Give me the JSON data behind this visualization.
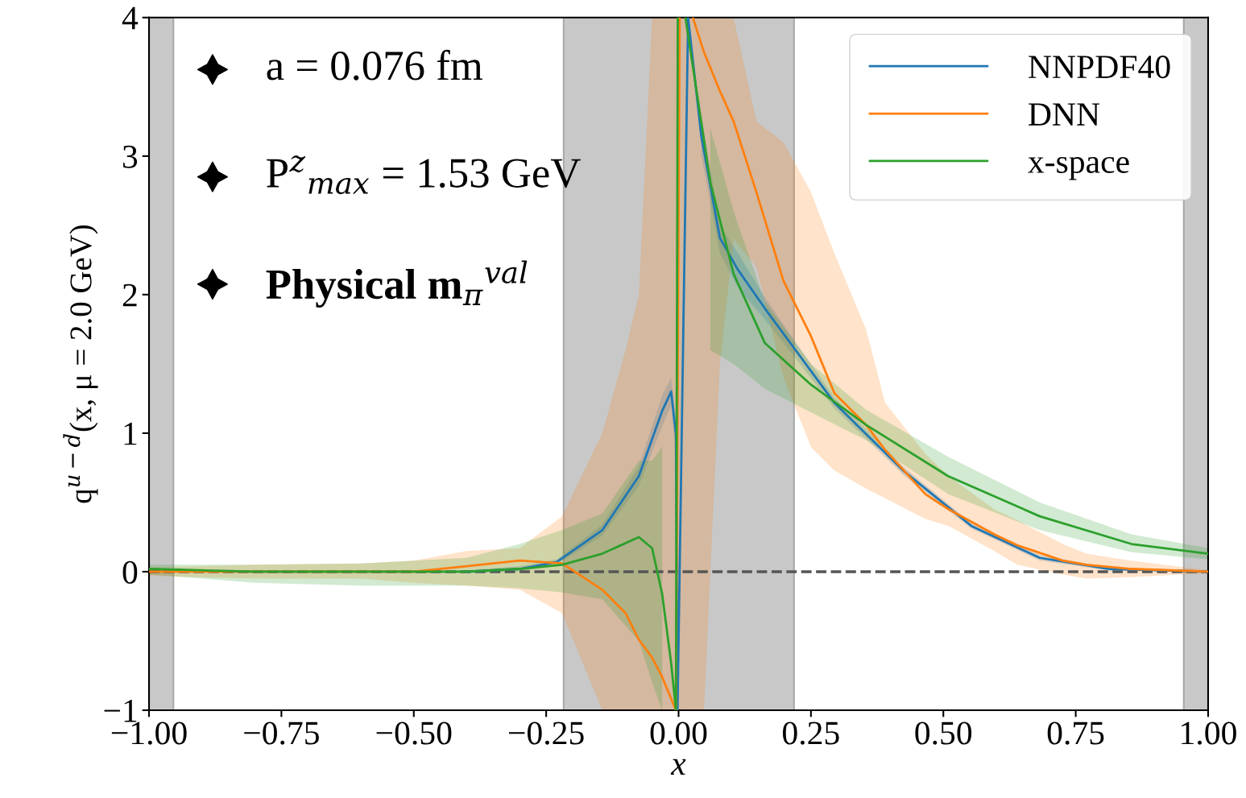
{
  "chart_data": {
    "type": "line",
    "xlabel": "x",
    "ylabel": "q$^{u−d}$(x, μ = 2.0 GeV)",
    "xlim": [
      -1,
      1
    ],
    "ylim": [
      -1,
      4
    ],
    "xticks": [
      {
        "value": -1,
        "label": "−1.00"
      },
      {
        "value": -0.75,
        "label": "−0.75"
      },
      {
        "value": -0.5,
        "label": "−0.50"
      },
      {
        "value": -0.25,
        "label": "−0.25"
      },
      {
        "value": 0,
        "label": "0.00"
      },
      {
        "value": 0.25,
        "label": "0.25"
      },
      {
        "value": 0.5,
        "label": "0.50"
      },
      {
        "value": 0.75,
        "label": "0.75"
      },
      {
        "value": 1,
        "label": "1.00"
      }
    ],
    "yticks": [
      {
        "value": -1,
        "label": "−1"
      },
      0,
      1,
      2,
      3,
      4
    ],
    "grid": false,
    "legend": "top right",
    "annotations": [
      "a = 0.076 fm",
      "P$^{z}$$_{max}$ = 1.53 GeV",
      "Physical m$_{π}$$^{val}$"
    ],
    "ref_lines": [
      {
        "axis": "y",
        "value": 0,
        "color": "#555555",
        "line_style": "dashed"
      }
    ],
    "bands": [
      {
        "axis": "x",
        "from": -1,
        "to": -0.954,
        "color": "#c8c8c8"
      },
      {
        "axis": "x",
        "from": -0.217,
        "to": 0.218,
        "color": "#c8c8c8"
      },
      {
        "axis": "x",
        "from": 0.954,
        "to": 1,
        "color": "#c8c8c8"
      }
    ],
    "series": [
      {
        "name": "NNPDF40",
        "color": "#1f77b4",
        "x": [
          -1,
          -0.8,
          -0.6,
          -0.4,
          -0.3,
          -0.23,
          -0.144,
          -0.075,
          -0.031,
          -0.014,
          -0.005,
          -0.002,
          0.018,
          0.043,
          0.078,
          0.112,
          0.163,
          0.217,
          0.294,
          0.424,
          0.553,
          0.682,
          0.813,
          1.0
        ],
        "values": [
          null,
          null,
          null,
          0.0,
          0.02,
          0.07,
          0.3,
          0.69,
          1.16,
          1.3,
          0.99,
          -1.0,
          4.0,
          3.14,
          2.41,
          2.18,
          1.9,
          1.62,
          1.22,
          0.73,
          0.33,
          0.1,
          0.02,
          0.0
        ],
        "lower": [
          0.0,
          -0.01,
          -0.01,
          -0.01,
          0.0,
          0.05,
          0.26,
          0.62,
          1.05,
          1.2,
          0.85,
          null,
          null,
          3.0,
          2.3,
          2.05,
          1.82,
          1.56,
          1.18,
          0.7,
          0.31,
          0.08,
          0.01,
          -0.01
        ],
        "upper": [
          0.02,
          0.01,
          0.01,
          0.01,
          0.04,
          0.09,
          0.34,
          0.76,
          1.27,
          1.4,
          1.1,
          null,
          null,
          3.3,
          2.5,
          2.3,
          1.98,
          1.68,
          1.26,
          0.76,
          0.35,
          0.12,
          0.03,
          0.01
        ]
      },
      {
        "name": "DNN",
        "color": "#ff7f0e",
        "x": [
          -1,
          -0.8,
          -0.6,
          -0.5,
          -0.4,
          -0.3,
          -0.22,
          -0.144,
          -0.1,
          -0.075,
          -0.05,
          -0.031,
          -0.005,
          0.002,
          0.01,
          0.027,
          0.048,
          0.078,
          0.104,
          0.147,
          0.198,
          0.25,
          0.294,
          0.354,
          0.39,
          0.466,
          0.51,
          0.596,
          0.64,
          0.725,
          0.77,
          0.855,
          1.0
        ],
        "values": [
          0.0,
          0.0,
          0.0,
          0.0,
          0.04,
          0.08,
          0.06,
          -0.13,
          -0.3,
          -0.49,
          -0.62,
          -0.76,
          -1.0,
          4.0,
          null,
          4.0,
          3.75,
          3.47,
          3.25,
          2.74,
          2.1,
          1.7,
          1.29,
          1.06,
          0.88,
          0.56,
          0.45,
          0.27,
          0.19,
          0.08,
          0.05,
          0.02,
          0.0
        ],
        "lower": [
          -0.03,
          -0.05,
          -0.05,
          -0.08,
          -0.1,
          -0.13,
          -0.3,
          -1.0,
          -1.0,
          -1.0,
          -1.0,
          -1.0,
          -1.0,
          -1.0,
          -1.0,
          -1.0,
          -1.0,
          1.5,
          2.4,
          2.2,
          1.4,
          0.9,
          0.73,
          0.6,
          0.53,
          0.38,
          0.33,
          0.15,
          0.05,
          -0.02,
          -0.05,
          -0.04,
          -0.01
        ],
        "upper": [
          0.03,
          0.05,
          0.06,
          0.08,
          0.15,
          0.17,
          0.4,
          1.0,
          1.6,
          2.0,
          4.0,
          4.0,
          4.0,
          4.0,
          4.0,
          4.0,
          4.0,
          4.0,
          4.0,
          3.25,
          3.1,
          2.74,
          2.3,
          1.75,
          1.22,
          0.85,
          0.69,
          0.45,
          0.37,
          0.2,
          0.13,
          0.08,
          0.01
        ]
      },
      {
        "name": "x-space",
        "color": "#2ca02c",
        "x": [
          -1,
          -0.8,
          -0.6,
          -0.4,
          -0.3,
          -0.22,
          -0.144,
          -0.075,
          -0.05,
          -0.031,
          -0.014,
          -0.005,
          -0.0015,
          0.005,
          0.013,
          0.034,
          0.06,
          0.104,
          0.163,
          0.25,
          0.354,
          0.509,
          0.682,
          0.855,
          1.0
        ],
        "values": [
          0.02,
          0.0,
          0.0,
          0.0,
          0.02,
          0.05,
          0.13,
          0.25,
          0.17,
          -0.16,
          -0.66,
          -1.0,
          4.0,
          null,
          4.0,
          3.47,
          2.81,
          2.15,
          1.65,
          1.35,
          1.06,
          0.69,
          0.4,
          0.2,
          0.13
        ],
        "lower": [
          -0.02,
          -0.08,
          -0.1,
          -0.1,
          -0.12,
          -0.15,
          -0.2,
          -0.5,
          -0.8,
          -1.0,
          null,
          null,
          null,
          null,
          null,
          null,
          1.6,
          1.5,
          1.32,
          1.15,
          0.95,
          0.56,
          0.3,
          0.14,
          0.09
        ],
        "upper": [
          0.05,
          0.05,
          0.06,
          0.1,
          0.2,
          0.3,
          0.42,
          0.8,
          0.8,
          0.9,
          null,
          null,
          null,
          null,
          null,
          null,
          3.2,
          2.6,
          1.95,
          1.5,
          1.17,
          0.83,
          0.5,
          0.27,
          0.17
        ]
      }
    ]
  }
}
